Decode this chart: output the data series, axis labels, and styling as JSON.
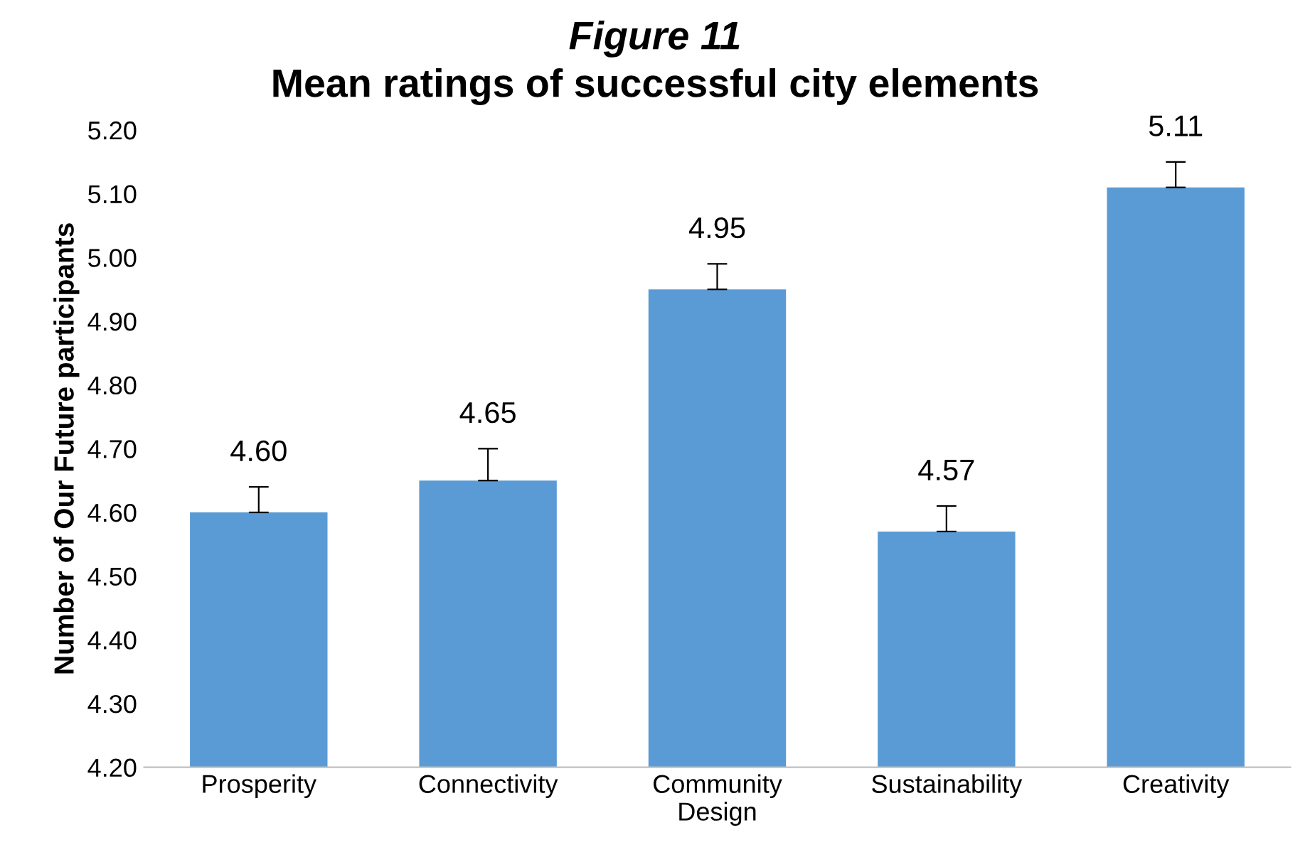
{
  "chart_data": {
    "type": "bar",
    "title": "Figure 11",
    "subtitle": "Mean ratings of successful city elements",
    "ylabel": "Number of Our Future participants",
    "categories": [
      "Prosperity",
      "Connectivity",
      "Community Design",
      "Sustainability",
      "Creativity"
    ],
    "values": [
      4.6,
      4.65,
      4.95,
      4.57,
      5.11
    ],
    "value_labels": [
      "4.60",
      "4.65",
      "4.95",
      "4.57",
      "5.11"
    ],
    "errors": [
      [
        4.6,
        4.64
      ],
      [
        4.65,
        4.7
      ],
      [
        4.95,
        4.99
      ],
      [
        4.57,
        4.61
      ],
      [
        5.11,
        5.15
      ]
    ],
    "color": "#5b9bd5",
    "ylim": [
      4.2,
      5.2
    ],
    "yticks": [
      {
        "value": 4.2,
        "label": "4.20"
      },
      {
        "value": 4.3,
        "label": "4.30"
      },
      {
        "value": 4.4,
        "label": "4.40"
      },
      {
        "value": 4.5,
        "label": "4.50"
      },
      {
        "value": 4.6,
        "label": "4.60"
      },
      {
        "value": 4.7,
        "label": "4.70"
      },
      {
        "value": 4.8,
        "label": "4.80"
      },
      {
        "value": 4.9,
        "label": "4.90"
      },
      {
        "value": 5.0,
        "label": "5.00"
      },
      {
        "value": 5.1,
        "label": "5.10"
      },
      {
        "value": 5.2,
        "label": "5.20"
      }
    ],
    "grid": false
  }
}
